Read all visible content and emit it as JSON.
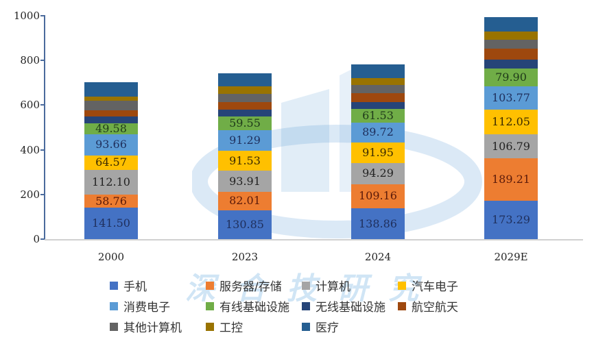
{
  "chart_data": {
    "type": "bar",
    "stacked": true,
    "title": "",
    "xlabel": "",
    "ylabel": "",
    "ylim": [
      0,
      1000
    ],
    "yticks": [
      0,
      200,
      400,
      600,
      800,
      1000
    ],
    "grid": false,
    "legend_position": "bottom",
    "categories": [
      "2000",
      "2023",
      "2024",
      "2029E"
    ],
    "series": [
      {
        "name": "手机",
        "color": "#4472C4",
        "values": [
          141.5,
          130.85,
          138.86,
          173.29
        ],
        "labeled": true
      },
      {
        "name": "服务器/存储",
        "color": "#ED7D31",
        "values": [
          58.76,
          82.01,
          109.16,
          189.21
        ],
        "labeled": true
      },
      {
        "name": "计算机",
        "color": "#A5A5A5",
        "values": [
          112.1,
          93.91,
          94.29,
          106.79
        ],
        "labeled": true
      },
      {
        "name": "汽车电子",
        "color": "#FFC000",
        "values": [
          64.57,
          91.53,
          91.95,
          112.05
        ],
        "labeled": true
      },
      {
        "name": "消费电子",
        "color": "#5B9BD5",
        "values": [
          93.66,
          91.29,
          89.72,
          103.77
        ],
        "labeled": true
      },
      {
        "name": "有线基础设施",
        "color": "#70AD47",
        "values": [
          49.58,
          59.55,
          61.53,
          79.9
        ],
        "labeled": true
      },
      {
        "name": "无线基础设施",
        "color": "#264478",
        "values": [
          31,
          31,
          31,
          40
        ],
        "labeled": false
      },
      {
        "name": "航空航天",
        "color": "#9E480E",
        "values": [
          28,
          34,
          37,
          49
        ],
        "labeled": false
      },
      {
        "name": "其他计算机",
        "color": "#636363",
        "values": [
          43,
          37,
          37,
          40
        ],
        "labeled": false
      },
      {
        "name": "工控",
        "color": "#997300",
        "values": [
          18,
          34,
          31,
          37
        ],
        "labeled": false
      },
      {
        "name": "医疗",
        "color": "#255E91",
        "values": [
          61,
          58,
          61,
          64
        ],
        "labeled": false
      }
    ],
    "label_colors": {
      "手机": "#1f2f5c",
      "服务器/存储": "#5a1a0a",
      "计算机": "#222222",
      "汽车电子": "#3a2a00",
      "消费电子": "#1f2f5c",
      "有线基础设施": "#1f3a1a"
    }
  },
  "watermark": {
    "text": "深合技研究"
  }
}
